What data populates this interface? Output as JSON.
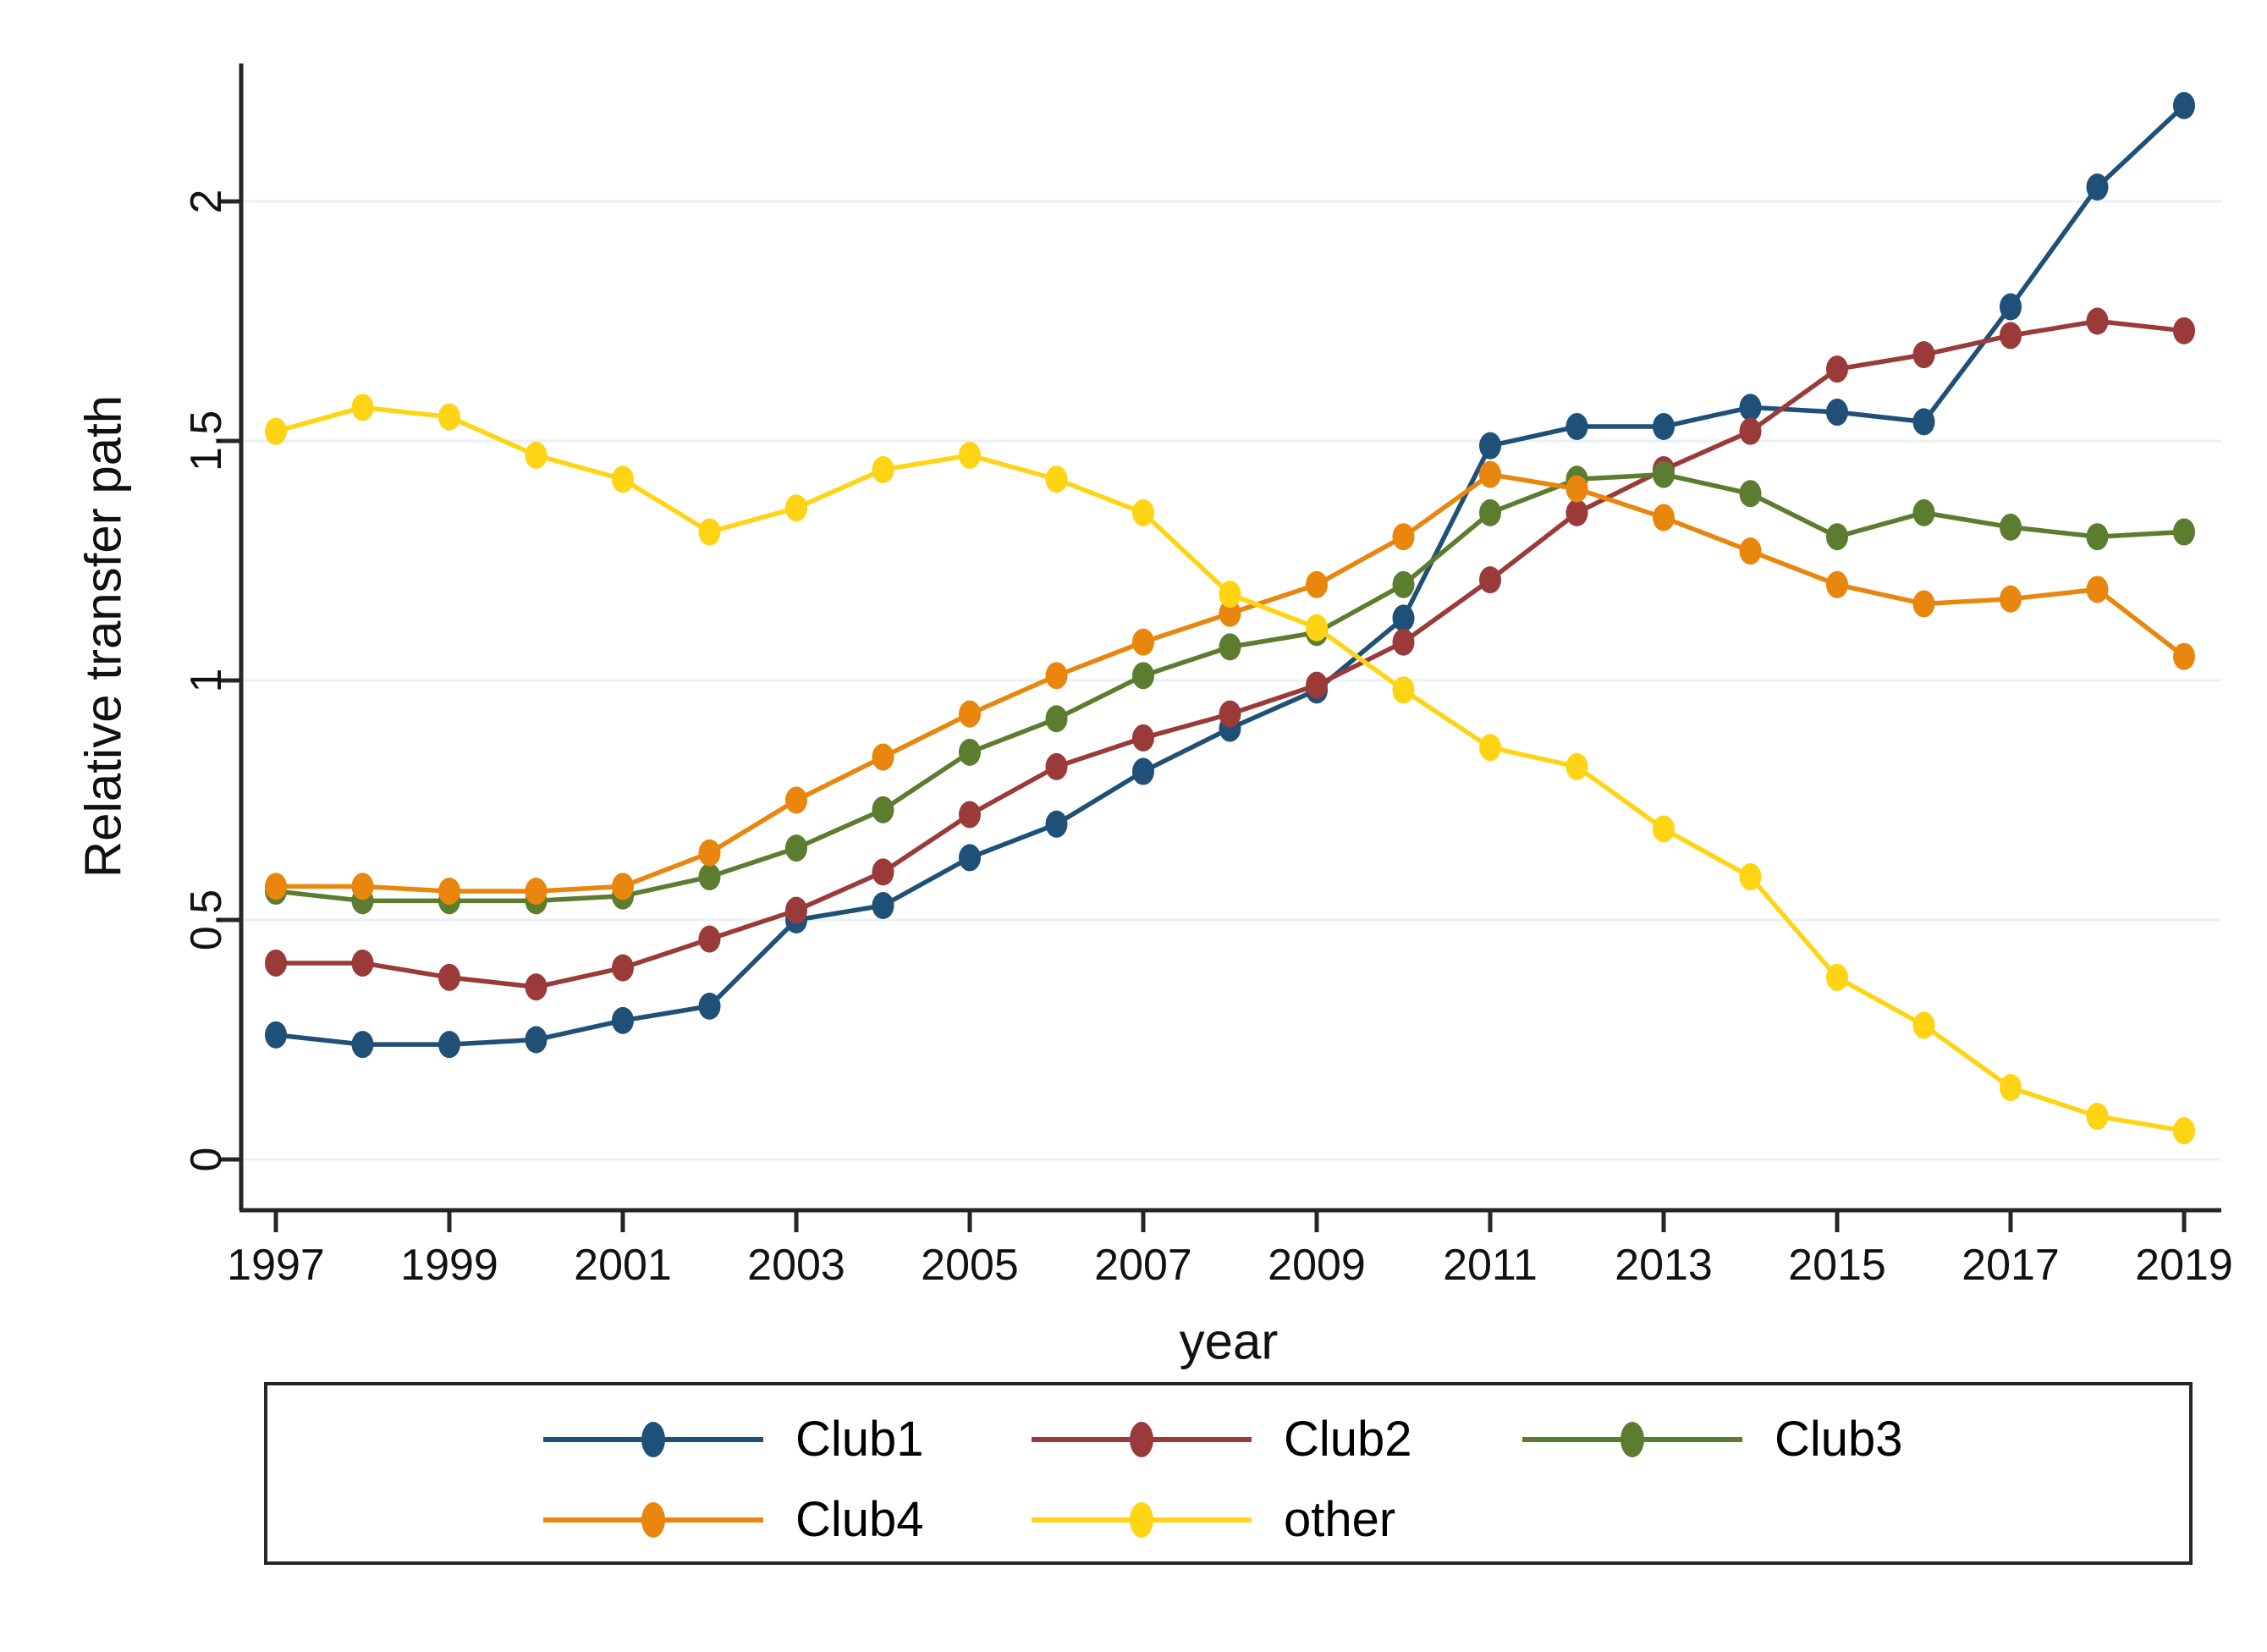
{
  "style": {
    "background": "#ffffff",
    "grid_color": "#e9f1f3",
    "axis_color": "#262626",
    "text_color": "#111111",
    "legend_border_color": "#262626"
  },
  "chart_data": {
    "type": "line",
    "title": "",
    "xlabel": "year",
    "ylabel": "Relative transfer path",
    "grid": "horizontal",
    "legend_position": "bottom",
    "xlim": [
      1996.6,
      2019.45
    ],
    "ylim": [
      -0.11,
      2.29
    ],
    "x": [
      1997,
      1998,
      1999,
      2000,
      2001,
      2002,
      2003,
      2004,
      2005,
      2006,
      2007,
      2008,
      2009,
      2010,
      2011,
      2012,
      2013,
      2014,
      2015,
      2016,
      2017,
      2018,
      2019
    ],
    "x_tick_values": [
      1997,
      1999,
      2001,
      2003,
      2005,
      2007,
      2009,
      2011,
      2013,
      2015,
      2017,
      2019
    ],
    "x_tick_labels": [
      "1997",
      "1999",
      "2001",
      "2003",
      "2005",
      "2007",
      "2009",
      "2011",
      "2013",
      "2015",
      "2017",
      "2019"
    ],
    "y_tick_values": [
      0,
      0.5,
      1,
      1.5,
      2
    ],
    "y_tick_labels": [
      "0",
      "0.5",
      "1",
      "1.5",
      "2"
    ],
    "series": [
      {
        "name": "Club1",
        "color": "#1f5078",
        "values": [
          0.26,
          0.24,
          0.24,
          0.25,
          0.29,
          0.32,
          0.5,
          0.53,
          0.63,
          0.7,
          0.81,
          0.9,
          0.98,
          1.13,
          1.49,
          1.53,
          1.53,
          1.57,
          1.56,
          1.54,
          1.78,
          2.03,
          2.2
        ]
      },
      {
        "name": "Club2",
        "color": "#9a3b3a",
        "values": [
          0.41,
          0.41,
          0.38,
          0.36,
          0.4,
          0.46,
          0.52,
          0.6,
          0.72,
          0.82,
          0.88,
          0.93,
          0.99,
          1.08,
          1.21,
          1.35,
          1.44,
          1.52,
          1.65,
          1.68,
          1.72,
          1.75,
          1.73
        ]
      },
      {
        "name": "Club3",
        "color": "#5c7c30",
        "values": [
          0.56,
          0.54,
          0.54,
          0.54,
          0.55,
          0.59,
          0.65,
          0.73,
          0.85,
          0.92,
          1.01,
          1.07,
          1.1,
          1.2,
          1.35,
          1.42,
          1.43,
          1.39,
          1.3,
          1.35,
          1.32,
          1.3,
          1.31
        ]
      },
      {
        "name": "Club4",
        "color": "#e8860d",
        "values": [
          0.57,
          0.57,
          0.56,
          0.56,
          0.57,
          0.64,
          0.75,
          0.84,
          0.93,
          1.01,
          1.08,
          1.14,
          1.2,
          1.3,
          1.43,
          1.4,
          1.34,
          1.27,
          1.2,
          1.16,
          1.17,
          1.19,
          1.05
        ]
      },
      {
        "name": "other",
        "color": "#ffd414",
        "values": [
          1.52,
          1.57,
          1.55,
          1.47,
          1.42,
          1.31,
          1.36,
          1.44,
          1.47,
          1.42,
          1.35,
          1.18,
          1.11,
          0.98,
          0.86,
          0.82,
          0.69,
          0.59,
          0.38,
          0.28,
          0.15,
          0.09,
          0.06
        ]
      }
    ]
  }
}
